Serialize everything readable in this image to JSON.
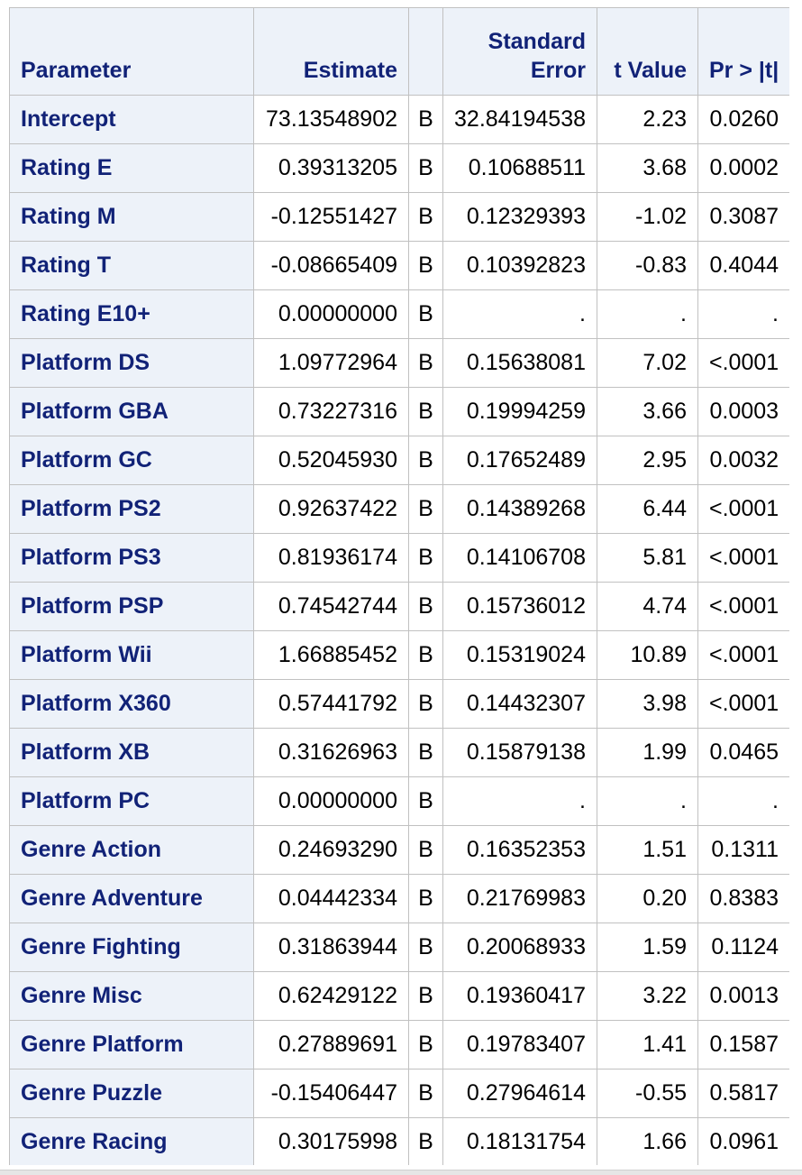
{
  "table": {
    "headers": {
      "parameter": "Parameter",
      "estimate": "Estimate",
      "flag": "",
      "standard_error_line1": "Standard",
      "standard_error_line2": "Error",
      "t_value": "t Value",
      "pr_t": "Pr > |t|"
    },
    "rows": [
      {
        "parameter": "Intercept",
        "estimate": "73.13548902",
        "flag": "B",
        "std_error": "32.84194538",
        "t_value": "2.23",
        "pr_t": "0.0260"
      },
      {
        "parameter": "Rating E",
        "estimate": "0.39313205",
        "flag": "B",
        "std_error": "0.10688511",
        "t_value": "3.68",
        "pr_t": "0.0002"
      },
      {
        "parameter": "Rating M",
        "estimate": "-0.12551427",
        "flag": "B",
        "std_error": "0.12329393",
        "t_value": "-1.02",
        "pr_t": "0.3087"
      },
      {
        "parameter": "Rating T",
        "estimate": "-0.08665409",
        "flag": "B",
        "std_error": "0.10392823",
        "t_value": "-0.83",
        "pr_t": "0.4044"
      },
      {
        "parameter": "Rating E10+",
        "estimate": "0.00000000",
        "flag": "B",
        "std_error": ".",
        "t_value": ".",
        "pr_t": "."
      },
      {
        "parameter": "Platform DS",
        "estimate": "1.09772964",
        "flag": "B",
        "std_error": "0.15638081",
        "t_value": "7.02",
        "pr_t": "<.0001"
      },
      {
        "parameter": "Platform GBA",
        "estimate": "0.73227316",
        "flag": "B",
        "std_error": "0.19994259",
        "t_value": "3.66",
        "pr_t": "0.0003"
      },
      {
        "parameter": "Platform GC",
        "estimate": "0.52045930",
        "flag": "B",
        "std_error": "0.17652489",
        "t_value": "2.95",
        "pr_t": "0.0032"
      },
      {
        "parameter": "Platform PS2",
        "estimate": "0.92637422",
        "flag": "B",
        "std_error": "0.14389268",
        "t_value": "6.44",
        "pr_t": "<.0001"
      },
      {
        "parameter": "Platform PS3",
        "estimate": "0.81936174",
        "flag": "B",
        "std_error": "0.14106708",
        "t_value": "5.81",
        "pr_t": "<.0001"
      },
      {
        "parameter": "Platform PSP",
        "estimate": "0.74542744",
        "flag": "B",
        "std_error": "0.15736012",
        "t_value": "4.74",
        "pr_t": "<.0001"
      },
      {
        "parameter": "Platform Wii",
        "estimate": "1.66885452",
        "flag": "B",
        "std_error": "0.15319024",
        "t_value": "10.89",
        "pr_t": "<.0001"
      },
      {
        "parameter": "Platform X360",
        "estimate": "0.57441792",
        "flag": "B",
        "std_error": "0.14432307",
        "t_value": "3.98",
        "pr_t": "<.0001"
      },
      {
        "parameter": "Platform XB",
        "estimate": "0.31626963",
        "flag": "B",
        "std_error": "0.15879138",
        "t_value": "1.99",
        "pr_t": "0.0465"
      },
      {
        "parameter": "Platform PC",
        "estimate": "0.00000000",
        "flag": "B",
        "std_error": ".",
        "t_value": ".",
        "pr_t": "."
      },
      {
        "parameter": "Genre Action",
        "estimate": "0.24693290",
        "flag": "B",
        "std_error": "0.16352353",
        "t_value": "1.51",
        "pr_t": "0.1311"
      },
      {
        "parameter": "Genre Adventure",
        "estimate": "0.04442334",
        "flag": "B",
        "std_error": "0.21769983",
        "t_value": "0.20",
        "pr_t": "0.8383"
      },
      {
        "parameter": "Genre Fighting",
        "estimate": "0.31863944",
        "flag": "B",
        "std_error": "0.20068933",
        "t_value": "1.59",
        "pr_t": "0.1124"
      },
      {
        "parameter": "Genre Misc",
        "estimate": "0.62429122",
        "flag": "B",
        "std_error": "0.19360417",
        "t_value": "3.22",
        "pr_t": "0.0013"
      },
      {
        "parameter": "Genre Platform",
        "estimate": "0.27889691",
        "flag": "B",
        "std_error": "0.19783407",
        "t_value": "1.41",
        "pr_t": "0.1587"
      },
      {
        "parameter": "Genre Puzzle",
        "estimate": "-0.15406447",
        "flag": "B",
        "std_error": "0.27964614",
        "t_value": "-0.55",
        "pr_t": "0.5817"
      },
      {
        "parameter": "Genre Racing",
        "estimate": "0.30175998",
        "flag": "B",
        "std_error": "0.18131754",
        "t_value": "1.66",
        "pr_t": "0.0961"
      }
    ]
  },
  "colors": {
    "header_background": "#edf2f9",
    "header_text": "#112277",
    "grid_line": "#c1c1c1",
    "cell_text": "#000000"
  }
}
